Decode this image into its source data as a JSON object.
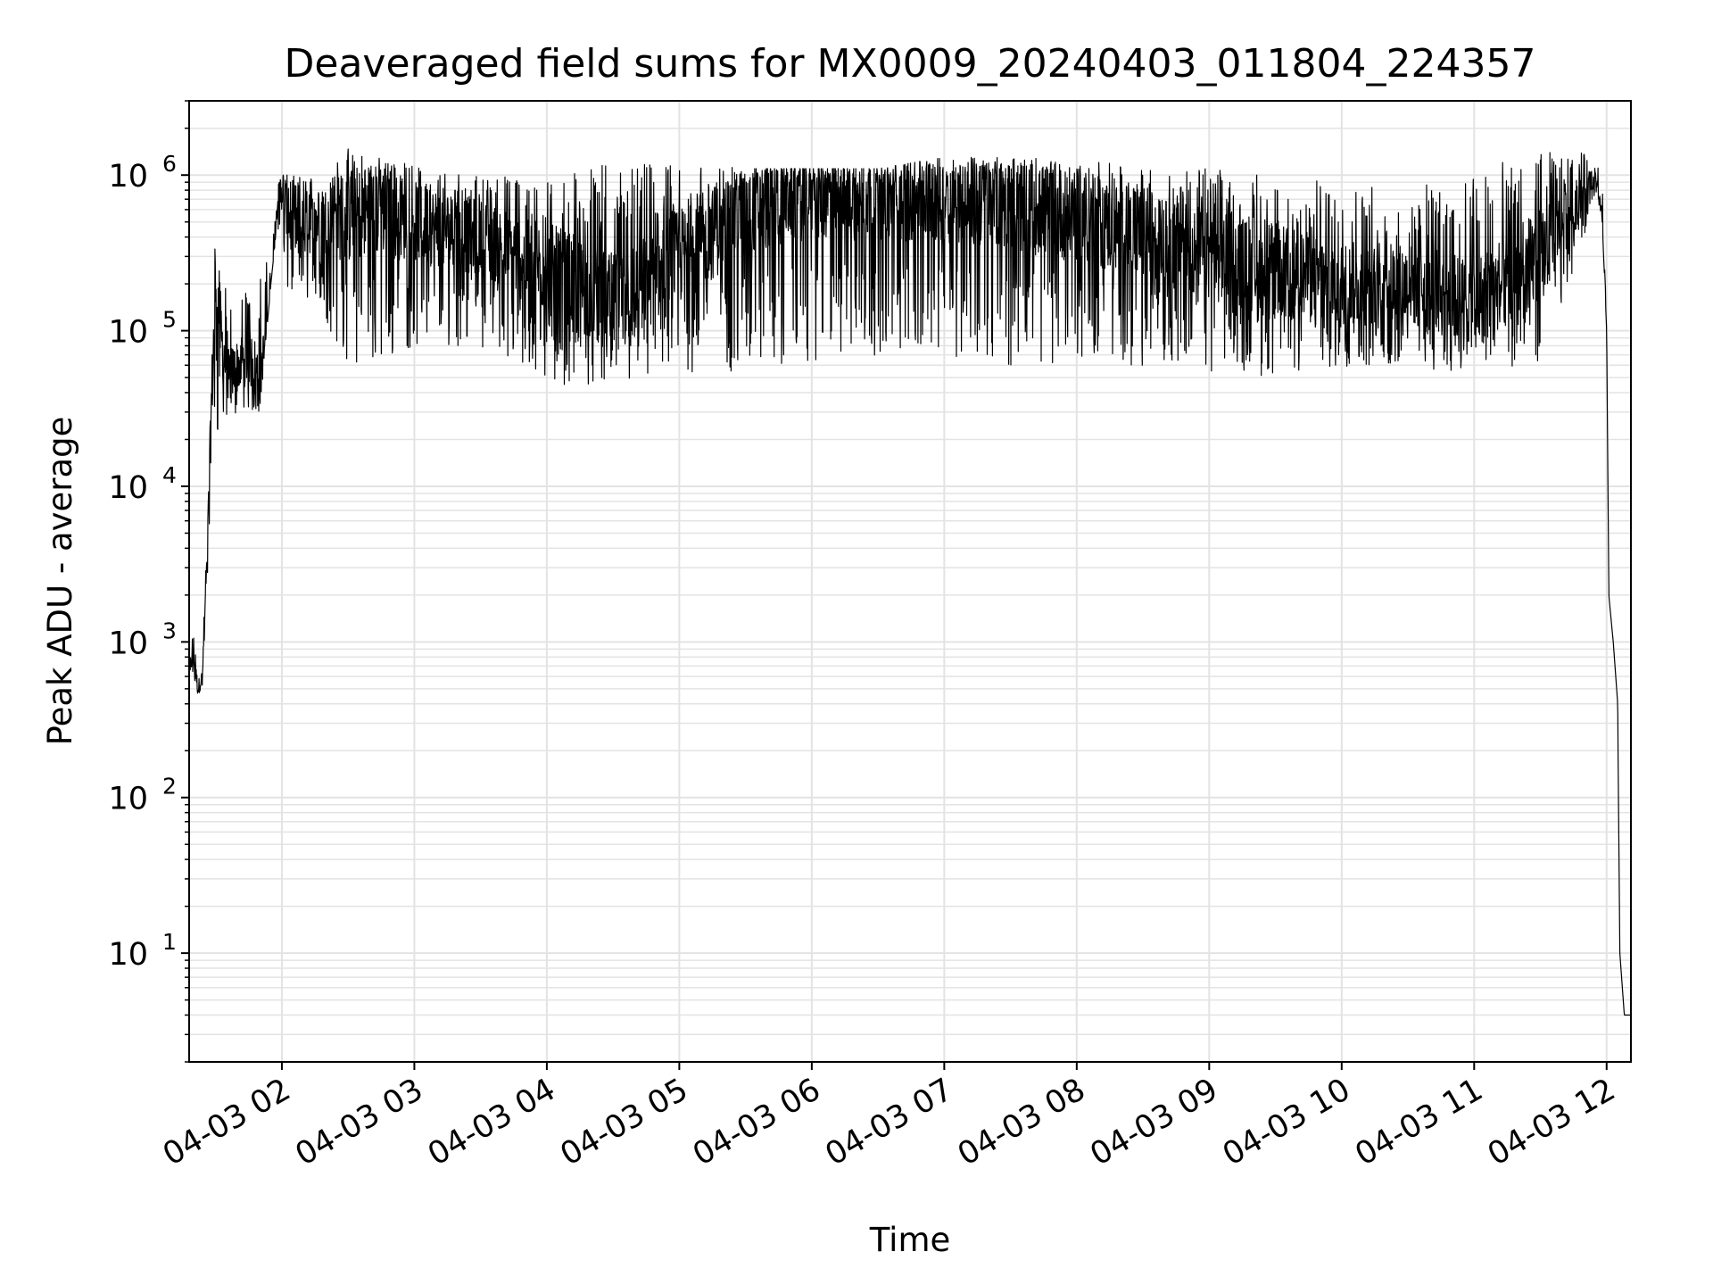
{
  "chart_data": {
    "type": "line",
    "title": "Deaveraged field sums for MX0009_20240403_011804_224357",
    "xlabel": "Time",
    "ylabel": "Peak ADU - average",
    "yscale": "log",
    "ylim": [
      2,
      3000000
    ],
    "xlim": [
      "04-03 01:18",
      "04-03 12:11"
    ],
    "x_ticks": [
      "04-03 02",
      "04-03 03",
      "04-03 04",
      "04-03 05",
      "04-03 06",
      "04-03 07",
      "04-03 08",
      "04-03 09",
      "04-03 10",
      "04-03 11",
      "04-03 12"
    ],
    "y_ticks": [
      {
        "base": "10",
        "exp": "1",
        "value": 10
      },
      {
        "base": "10",
        "exp": "2",
        "value": 100
      },
      {
        "base": "10",
        "exp": "3",
        "value": 1000
      },
      {
        "base": "10",
        "exp": "4",
        "value": 10000
      },
      {
        "base": "10",
        "exp": "5",
        "value": 100000
      },
      {
        "base": "10",
        "exp": "6",
        "value": 1000000
      }
    ],
    "grid": true,
    "line_color": "#000000",
    "grid_color": "#e3e3e3",
    "series": [
      {
        "x": [
          "04-03 01:18",
          "04-03 01:20",
          "04-03 01:22",
          "04-03 01:24",
          "04-03 01:26",
          "04-03 01:28",
          "04-03 01:30",
          "04-03 01:33",
          "04-03 01:36",
          "04-03 01:40",
          "04-03 01:45",
          "04-03 01:50",
          "04-03 01:55",
          "04-03 01:58",
          "04-03 02:00",
          "04-03 02:05",
          "04-03 02:15",
          "04-03 02:30",
          "04-03 02:45",
          "04-03 03:00",
          "04-03 03:30",
          "04-03 04:00",
          "04-03 04:30",
          "04-03 05:00",
          "04-03 05:30",
          "04-03 06:00",
          "04-03 06:30",
          "04-03 07:00",
          "04-03 07:30",
          "04-03 08:00",
          "04-03 08:30",
          "04-03 09:00",
          "04-03 09:30",
          "04-03 10:00",
          "04-03 10:30",
          "04-03 11:00",
          "04-03 11:30",
          "04-03 11:50",
          "04-03 11:55",
          "04-03 11:58",
          "04-03 12:00",
          "04-03 12:01",
          "04-03 12:03",
          "04-03 12:05",
          "04-03 12:06",
          "04-03 12:08",
          "04-03 12:11"
        ],
        "y": [
          700,
          800,
          500,
          600,
          3000,
          30000,
          200000,
          80000,
          50000,
          60000,
          70000,
          50000,
          150000,
          700000,
          850000,
          400000,
          500000,
          550000,
          600000,
          500000,
          400000,
          250000,
          150000,
          300000,
          600000,
          750000,
          700000,
          700000,
          650000,
          550000,
          400000,
          300000,
          250000,
          200000,
          200000,
          150000,
          300000,
          800000,
          1000000,
          500000,
          100000,
          2000,
          1000,
          400,
          10,
          4,
          4
        ],
        "y_low": [
          600,
          600,
          400,
          500,
          2000,
          10000,
          20000,
          20000,
          25000,
          30000,
          30000,
          30000,
          200000,
          500000,
          200000,
          150000,
          150000,
          60000,
          60000,
          80000,
          80000,
          45000,
          45000,
          50000,
          55000,
          60000,
          70000,
          70000,
          60000,
          60000,
          60000,
          55000,
          50000,
          55000,
          55000,
          55000,
          60000,
          400000,
          800000,
          500000,
          100000,
          2000,
          1000,
          400,
          10,
          4,
          4
        ],
        "y_high": [
          1000,
          1100,
          700,
          800,
          5000,
          100000,
          500000,
          250000,
          150000,
          180000,
          200000,
          250000,
          300000,
          900000,
          1000000,
          1000000,
          1000000,
          1500000,
          1300000,
          1200000,
          1000000,
          1000000,
          1200000,
          1200000,
          1100000,
          1100000,
          1100000,
          1300000,
          1300000,
          1300000,
          1200000,
          1100000,
          1000000,
          900000,
          800000,
          1100000,
          1400000,
          1400000,
          1300000,
          1000000,
          100000,
          2000,
          1000,
          400,
          10,
          4,
          4
        ]
      }
    ]
  }
}
